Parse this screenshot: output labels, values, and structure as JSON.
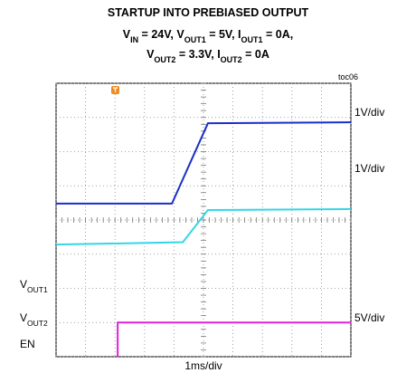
{
  "chart_data": {
    "type": "line",
    "title": "STARTUP INTO PREBIASED OUTPUT",
    "subtitle_lines": [
      [
        "V",
        "IN",
        " = 24V, V",
        "OUT1",
        " = 5V, I",
        "OUT1",
        " = 0A,"
      ],
      [
        "V",
        "OUT2",
        " = 3.3V, I",
        "OUT2",
        " = 0A"
      ]
    ],
    "figure_id": "toc06",
    "x_scale": "1ms/div",
    "xlim": [
      0,
      10
    ],
    "ylim": [
      0,
      8
    ],
    "xticks": [
      0,
      1,
      2,
      3,
      4,
      5,
      6,
      7,
      8,
      9,
      10
    ],
    "yticks": [
      0,
      1,
      2,
      3,
      4,
      5,
      6,
      7,
      8
    ],
    "grid": true,
    "series": [
      {
        "label": [
          "V",
          "OUT1"
        ],
        "scale": "1V/div",
        "color": "#1a2fc8",
        "x": [
          0,
          3.93,
          5.15,
          10
        ],
        "values": [
          4.48,
          4.48,
          6.83,
          6.86
        ]
      },
      {
        "label": [
          "V",
          "OUT2"
        ],
        "scale": "1V/div",
        "color": "#33d6e6",
        "x": [
          0,
          4.3,
          5.15,
          10
        ],
        "values": [
          3.28,
          3.35,
          4.29,
          4.32
        ]
      },
      {
        "label": [
          "EN"
        ],
        "scale": "5V/div",
        "color": "#e020d8",
        "x": [
          2.09,
          2.09,
          10
        ],
        "values": [
          0,
          1.0,
          1.0
        ]
      }
    ]
  }
}
